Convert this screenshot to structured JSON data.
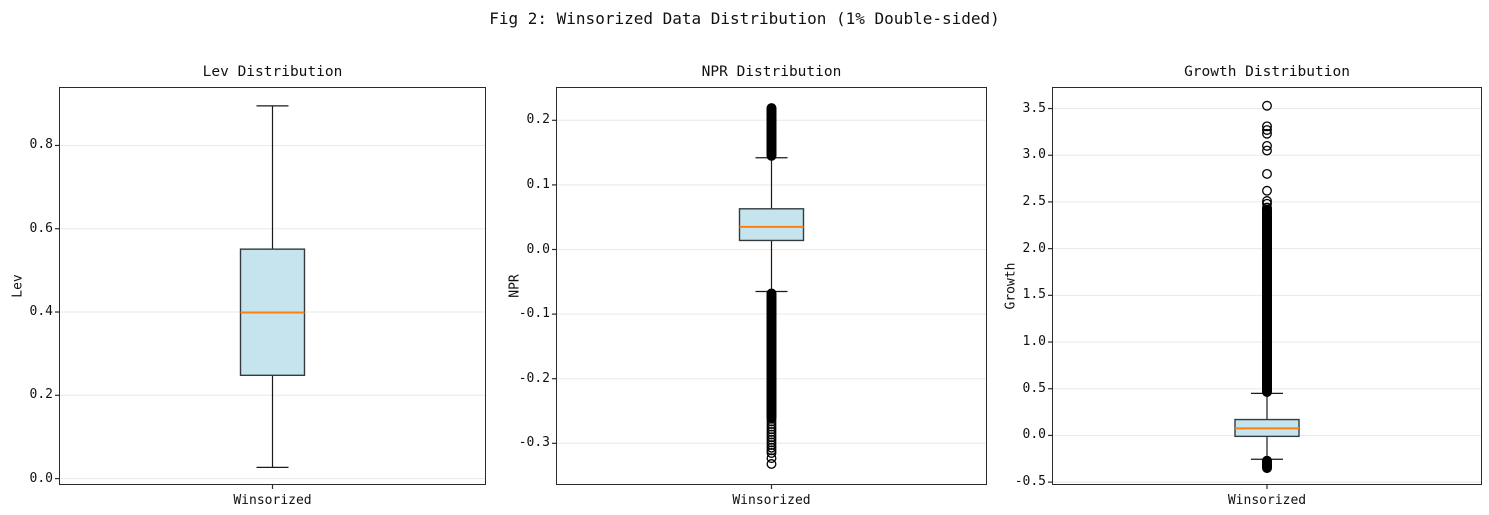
{
  "figure_title": "Fig 2: Winsorized Data Distribution (1% Double-sided)",
  "colors": {
    "background": "#ffffff",
    "box_fill": "#c6e4ee",
    "box_edge": "#333b41",
    "median": "#ff7f0e",
    "whisker": "#1a1a1a",
    "outlier": "#000000",
    "grid": "#e9e9e9",
    "spine": "#2b2b2b",
    "text": "#111111"
  },
  "chart_data": [
    {
      "type": "box",
      "title": "Lev Distribution",
      "ylabel": "Lev",
      "xtick_label": "Winsorized",
      "ylim": [
        -0.013,
        0.938
      ],
      "yticks": [
        0.0,
        0.2,
        0.4,
        0.6,
        0.8
      ],
      "ytick_labels": [
        "0.0",
        "0.2",
        "0.4",
        "0.6",
        "0.8"
      ],
      "box": {
        "whislo": 0.027,
        "q1": 0.248,
        "med": 0.399,
        "q3": 0.551,
        "whishi": 0.895
      },
      "outlier_ranges": [],
      "outlier_points": []
    },
    {
      "type": "box",
      "title": "NPR Distribution",
      "ylabel": "NPR",
      "xtick_label": "Winsorized",
      "ylim": [
        -0.363,
        0.25
      ],
      "yticks": [
        0.2,
        0.1,
        0.0,
        -0.1,
        -0.2,
        -0.3
      ],
      "ytick_labels": [
        "0.2",
        "0.1",
        "0.0",
        "-0.1",
        "-0.2",
        "-0.3"
      ],
      "box": {
        "whislo": -0.065,
        "q1": 0.014,
        "med": 0.035,
        "q3": 0.063,
        "whishi": 0.142
      },
      "outlier_ranges": [
        {
          "from": 0.145,
          "to": 0.219,
          "count": 60
        },
        {
          "from": -0.068,
          "to": -0.26,
          "count": 150
        },
        {
          "from": -0.262,
          "to": -0.315,
          "count": 14
        }
      ],
      "outlier_points": [
        -0.323,
        -0.332
      ]
    },
    {
      "type": "box",
      "title": "Growth Distribution",
      "ylabel": "Growth",
      "xtick_label": "Winsorized",
      "ylim": [
        -0.52,
        3.72
      ],
      "yticks": [
        3.5,
        3.0,
        2.5,
        2.0,
        1.5,
        1.0,
        0.5,
        0.0,
        -0.5
      ],
      "ytick_labels": [
        "3.5",
        "3.0",
        "2.5",
        "2.0",
        "1.5",
        "1.0",
        "0.5",
        "0.0",
        "-0.5"
      ],
      "box": {
        "whislo": -0.255,
        "q1": -0.01,
        "med": 0.075,
        "q3": 0.17,
        "whishi": 0.45
      },
      "outlier_ranges": [
        {
          "from": 0.465,
          "to": 2.42,
          "count": 230
        },
        {
          "from": -0.27,
          "to": -0.35,
          "count": 13
        }
      ],
      "outlier_points": [
        2.41,
        2.44,
        2.48,
        2.51,
        2.62,
        2.8,
        3.05,
        3.1,
        3.23,
        3.27,
        3.31,
        3.53
      ]
    }
  ]
}
